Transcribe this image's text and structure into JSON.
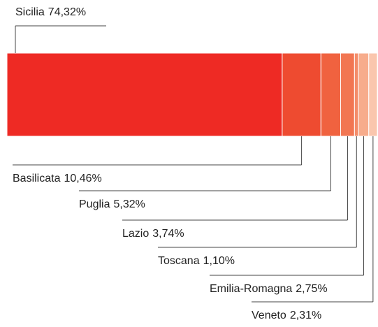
{
  "chart_data": {
    "type": "bar",
    "stacked": true,
    "orientation": "horizontal",
    "categories": [
      "Sicilia",
      "Basilicata",
      "Puglia",
      "Lazio",
      "Toscana",
      "Emilia-Romagna",
      "Veneto"
    ],
    "values": [
      74.32,
      10.46,
      5.32,
      3.74,
      1.1,
      2.75,
      2.31
    ],
    "value_labels": [
      "74,32%",
      "10,46%",
      "5,32%",
      "3,74%",
      "1,10%",
      "2,75%",
      "2,31%"
    ],
    "colors": [
      "#ee2a24",
      "#ee4b30",
      "#f0623f",
      "#f27652",
      "#f48d6a",
      "#f7ac8c",
      "#fac6ad"
    ],
    "xlim": [
      0,
      100
    ]
  }
}
